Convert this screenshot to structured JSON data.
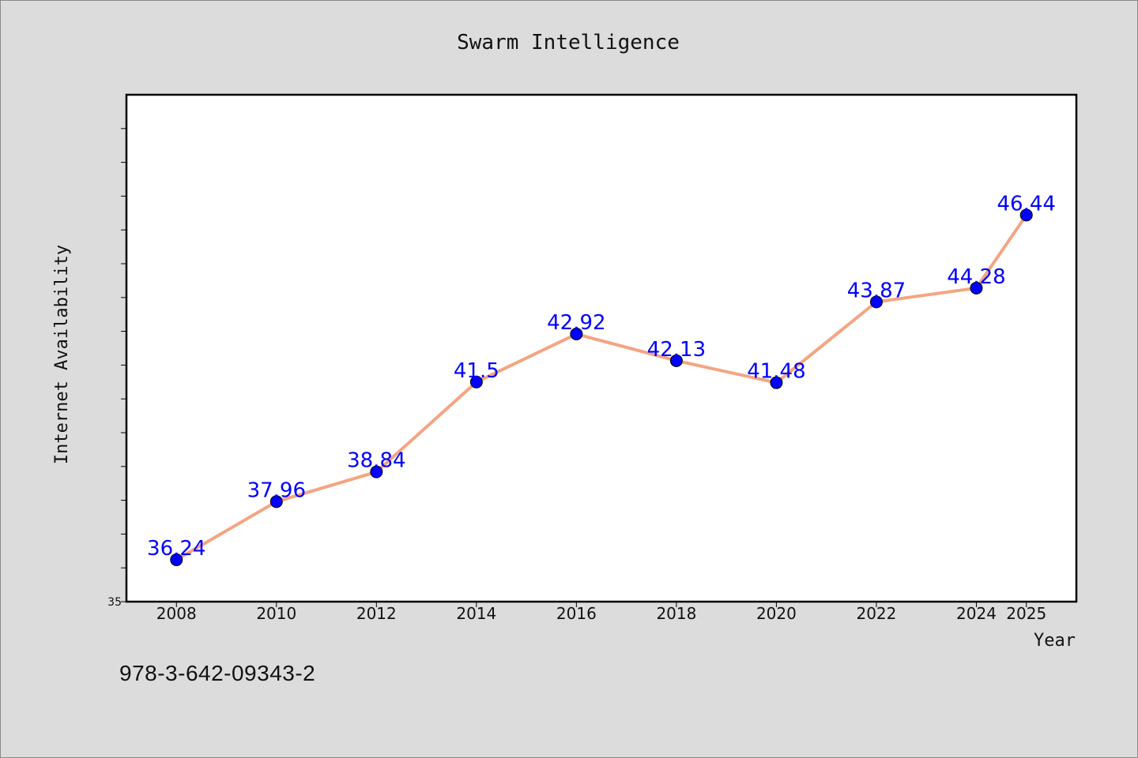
{
  "chart_data": {
    "type": "line",
    "title": "Swarm Intelligence",
    "xlabel": "Year",
    "ylabel": "Internet Availability",
    "x": [
      2008,
      2010,
      2012,
      2014,
      2016,
      2018,
      2020,
      2022,
      2024,
      2025
    ],
    "x_tick_labels": [
      "2008",
      "2010",
      "2012",
      "2014",
      "2016",
      "2018",
      "2020",
      "2022",
      "2024",
      "2025"
    ],
    "series": [
      {
        "values": [
          36.24,
          37.96,
          38.84,
          41.5,
          42.92,
          42.13,
          41.48,
          43.87,
          44.28,
          46.44
        ],
        "data_labels": [
          "36.24",
          "37.96",
          "38.84",
          "41.5",
          "42.92",
          "42.13",
          "41.48",
          "43.87",
          "44.28",
          "46.44"
        ],
        "line_color": "#f4a582",
        "marker_color": "#0000ff"
      }
    ],
    "y_tick_labels": [
      "35"
    ],
    "ylim": [
      35,
      50
    ],
    "grid": false,
    "legend": "none",
    "label_color": "#0000ff",
    "panel_color": "#ffffff",
    "background_color": "#dcdcdc"
  },
  "footer": {
    "code": "978-3-642-09343-2"
  }
}
